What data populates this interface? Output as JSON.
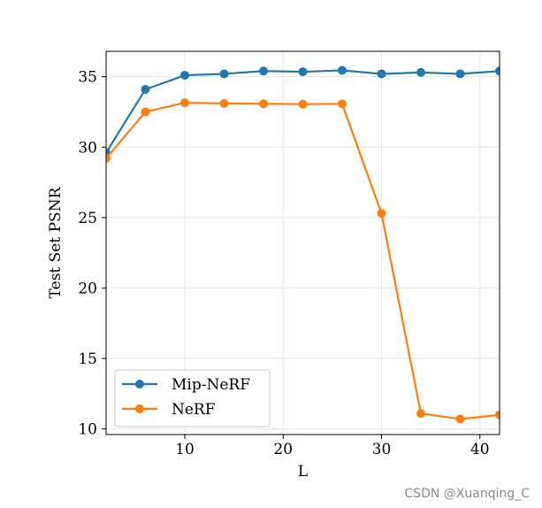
{
  "chart_data": {
    "type": "line",
    "xlabel": "L",
    "ylabel": "Test Set PSNR",
    "xlim": [
      2,
      42
    ],
    "ylim": [
      9.6,
      36.8
    ],
    "xticks": [
      10,
      20,
      30,
      40
    ],
    "yticks": [
      10,
      15,
      20,
      25,
      30,
      35
    ],
    "grid": true,
    "legend_position": "lower-left",
    "x": [
      2,
      6,
      10,
      14,
      18,
      22,
      26,
      30,
      34,
      38,
      42
    ],
    "series": [
      {
        "name": "Mip-NeRF",
        "color": "#1f77b4",
        "values": [
          29.6,
          34.1,
          35.1,
          35.2,
          35.4,
          35.35,
          35.45,
          35.2,
          35.3,
          35.2,
          35.4
        ]
      },
      {
        "name": "NeRF",
        "color": "#ff7f0e",
        "values": [
          29.2,
          32.5,
          33.15,
          33.1,
          33.08,
          33.05,
          33.07,
          25.3,
          11.1,
          10.7,
          11.0
        ]
      }
    ]
  },
  "watermark": "CSDN @Xuanqing_C"
}
